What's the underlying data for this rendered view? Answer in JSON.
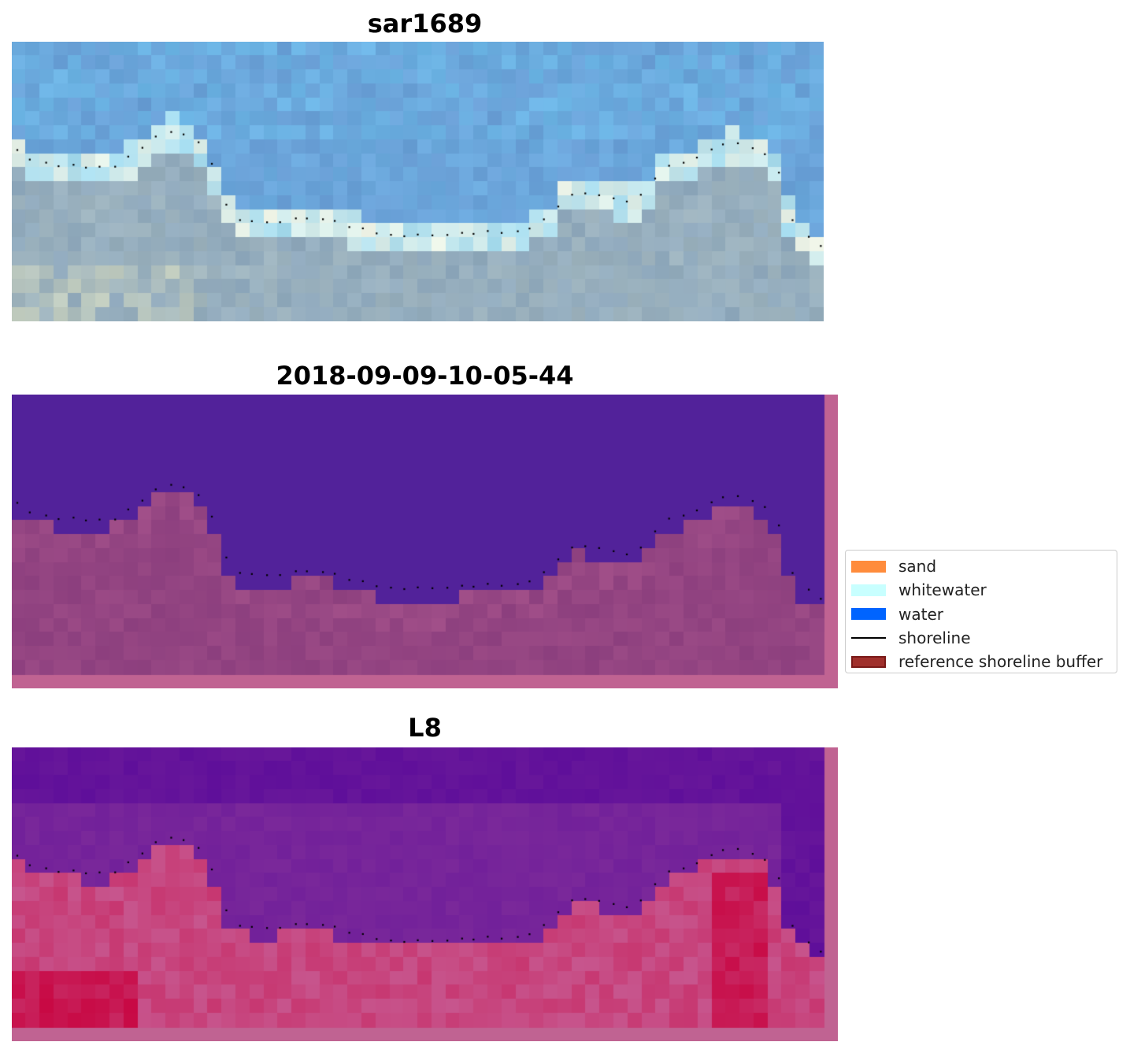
{
  "panels": [
    {
      "title": "sar1689",
      "kind": "rgb"
    },
    {
      "title": "2018-09-09-10-05-44",
      "kind": "classification"
    },
    {
      "title": "L8",
      "kind": "index"
    }
  ],
  "legend": {
    "items": [
      {
        "label": "sand",
        "color": "#ff8c3c"
      },
      {
        "label": "whitewater",
        "color": "#c8ffff"
      },
      {
        "label": "water",
        "color": "#0064ff"
      },
      {
        "label": "shoreline",
        "color": "#000000"
      },
      {
        "label": "reference shoreline buffer",
        "color": "#a0302c"
      }
    ]
  },
  "colors": {
    "water_class": "#52229a",
    "land_class": "#8c3f7e",
    "buffer_border": "#c06392",
    "index_high": "#c8003c",
    "index_low": "#5a0a9a",
    "shoreline_dots": "#000000"
  }
}
